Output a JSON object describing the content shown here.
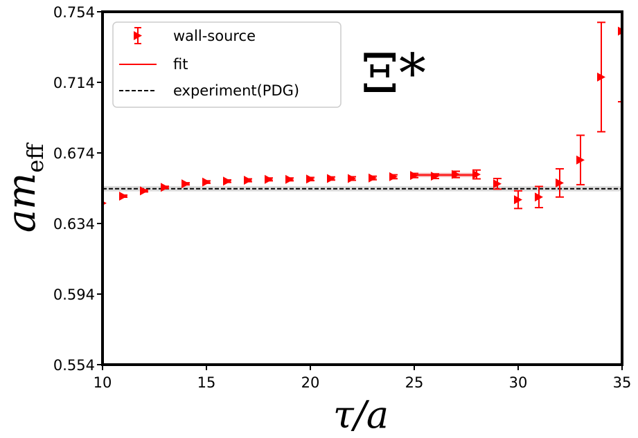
{
  "chart_data": {
    "type": "scatter",
    "title": "",
    "particle_label": "Ξ*",
    "xlabel": "τ/a",
    "ylabel": "am_eff",
    "ylabel_main": "am",
    "ylabel_sub": "eff",
    "xlim": [
      10,
      35
    ],
    "ylim": [
      0.554,
      0.754
    ],
    "xticks": [
      10,
      15,
      20,
      25,
      30,
      35
    ],
    "yticks": [
      0.554,
      0.594,
      0.634,
      0.674,
      0.714,
      0.754
    ],
    "ytick_labels": [
      "0.554",
      "0.594",
      "0.634",
      "0.674",
      "0.714",
      "0.754"
    ],
    "colors": {
      "data": "#ff0000",
      "fit_band": "#f4a0a0",
      "experiment": "#000000",
      "experiment_band": "#bdbdbd"
    },
    "series": [
      {
        "name": "wall-source",
        "marker": "triangle-right",
        "x": [
          10,
          11,
          12,
          13,
          14,
          15,
          16,
          17,
          18,
          19,
          20,
          21,
          22,
          23,
          24,
          25,
          26,
          27,
          28,
          29,
          30,
          31,
          32,
          33,
          34,
          35
        ],
        "y": [
          0.6455,
          0.6495,
          0.6525,
          0.6545,
          0.6565,
          0.6575,
          0.658,
          0.6585,
          0.659,
          0.659,
          0.6592,
          0.6595,
          0.6595,
          0.6598,
          0.6605,
          0.6612,
          0.6608,
          0.6618,
          0.6618,
          0.6565,
          0.6475,
          0.649,
          0.657,
          0.67,
          0.717,
          0.743
        ],
        "yerr": [
          0.0005,
          0.0006,
          0.0006,
          0.0006,
          0.0006,
          0.0007,
          0.0007,
          0.0008,
          0.0008,
          0.0008,
          0.0009,
          0.0009,
          0.001,
          0.001,
          0.0011,
          0.0012,
          0.0013,
          0.0018,
          0.0025,
          0.003,
          0.005,
          0.006,
          0.008,
          0.014,
          0.031,
          0.04
        ]
      }
    ],
    "fit": {
      "name": "fit",
      "x_range": [
        25,
        28
      ],
      "value": 0.6615,
      "error": 0.0012
    },
    "experiment": {
      "name": "experiment(PDG)",
      "value": 0.6537,
      "error": 0.0015
    },
    "legend": {
      "position": "top-left",
      "entries": [
        "wall-source",
        "fit",
        "experiment(PDG)"
      ]
    }
  }
}
